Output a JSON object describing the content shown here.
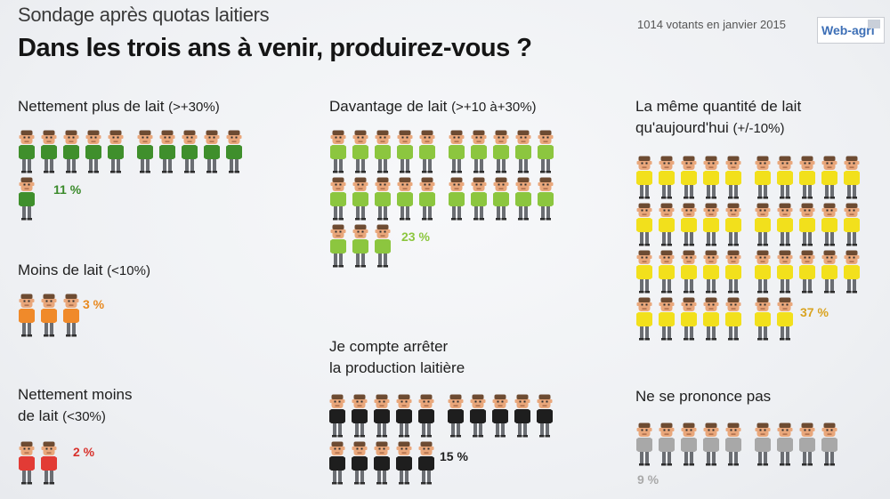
{
  "header": {
    "subtitle": "Sondage après quotas laitiers",
    "title": "Dans les trois ans à venir, produirez-vous ?",
    "votes": "1014 votants en janvier 2015",
    "logo": "Web-agri"
  },
  "chart_data": {
    "type": "pictogram",
    "title": "Dans les trois ans à venir, produirez-vous ?",
    "categories": [
      {
        "id": "nettement-plus",
        "label": "Nettement plus de lait",
        "detail": "(>+30%)",
        "value": 11,
        "value_label": "11 %",
        "color": "#3f8f2c",
        "text_color": "#3a8a2a"
      },
      {
        "id": "moins",
        "label": "Moins de lait",
        "detail": "(<10%)",
        "value": 3,
        "value_label": "3 %",
        "color": "#f08a2a",
        "text_color": "#e8891f"
      },
      {
        "id": "nettement-moins",
        "label": "Nettement moins",
        "label2": "de lait",
        "detail": "(<30%)",
        "value": 2,
        "value_label": "2 %",
        "color": "#e23b35",
        "text_color": "#d8322c"
      },
      {
        "id": "davantage",
        "label": "Davantage de lait",
        "detail": "(>+10 à+30%)",
        "value": 23,
        "value_label": "23 %",
        "color": "#8cc63f",
        "text_color": "#8cc63f"
      },
      {
        "id": "arreter",
        "label": "Je compte arrêter",
        "label2": "la production laitière",
        "detail": "",
        "value": 15,
        "value_label": "15 %",
        "color": "#1e1e1e",
        "text_color": "#1e1e1e"
      },
      {
        "id": "meme",
        "label": "La même quantité de lait",
        "label2": "qu'aujourd'hui",
        "detail": "(+/-10%)",
        "value": 37,
        "value_label": "37 %",
        "color": "#f2e01c",
        "text_color": "#d9a320"
      },
      {
        "id": "nsp",
        "label": "Ne se prononce pas",
        "detail": "",
        "value": 9,
        "value_label": "9 %",
        "color": "#a8a8a8",
        "text_color": "#a9a9a9"
      }
    ]
  }
}
